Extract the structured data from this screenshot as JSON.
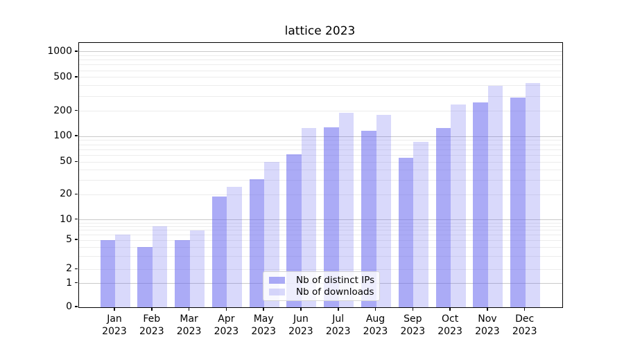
{
  "figure": {
    "title": "lattice 2023"
  },
  "chart_data": {
    "type": "bar",
    "title": "lattice 2023",
    "categories": [
      "Jan 2023",
      "Feb 2023",
      "Mar 2023",
      "Apr 2023",
      "May 2023",
      "Jun 2023",
      "Jul 2023",
      "Aug 2023",
      "Sep 2023",
      "Oct 2023",
      "Nov 2023",
      "Dec 2023"
    ],
    "series": [
      {
        "name": "Nb of distinct IPs",
        "color": "rgba(102,102,238,0.55)",
        "values": [
          5,
          4,
          5,
          19,
          31,
          62,
          128,
          117,
          56,
          127,
          253,
          291
        ]
      },
      {
        "name": "Nb of downloads",
        "color": "rgba(102,102,238,0.25)",
        "values": [
          6,
          8,
          7,
          25,
          50,
          125,
          190,
          180,
          86,
          238,
          397,
          430
        ]
      }
    ],
    "xlabel": "",
    "ylabel": "",
    "yscale": "symlog",
    "yticks": [
      0,
      1,
      2,
      5,
      10,
      20,
      50,
      100,
      200,
      500,
      1000
    ],
    "ylim": [
      0,
      1270
    ],
    "grid": "horizontal major+minor",
    "legend_position": "lower center inside plot"
  },
  "colors": {
    "bar_primary": "rgba(102,102,238,0.55)",
    "bar_secondary": "rgba(102,102,238,0.25)",
    "grid_major": "#c9c9c9",
    "grid_minor": "#ececec",
    "axis": "#000000",
    "background": "#ffffff",
    "legend_border": "#d5d5d5"
  }
}
